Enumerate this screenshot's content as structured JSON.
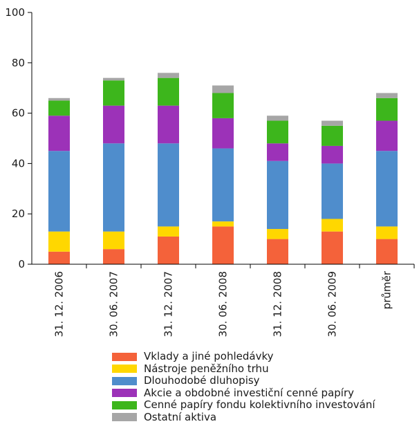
{
  "chart_data": {
    "type": "bar",
    "stacked": true,
    "categories": [
      "31. 12. 2006",
      "30. 06. 2007",
      "31. 12. 2007",
      "30. 06. 2008",
      "31. 12. 2008",
      "30. 06. 2009",
      "průměr"
    ],
    "series": [
      {
        "name": "Vklady a jiné pohledávky",
        "color": "#f4623a",
        "values": [
          5,
          6,
          11,
          15,
          10,
          13,
          10
        ]
      },
      {
        "name": "Nástroje peněžního trhu",
        "color": "#ffd700",
        "values": [
          8,
          7,
          4,
          2,
          4,
          5,
          5
        ]
      },
      {
        "name": "Dlouhodobé dluhopisy",
        "color": "#4f8dcc",
        "values": [
          32,
          35,
          33,
          29,
          27,
          22,
          30
        ]
      },
      {
        "name": "Akcie a obdobné investiční cenné papíry",
        "color": "#9c32b8",
        "values": [
          14,
          15,
          15,
          12,
          7,
          7,
          12
        ]
      },
      {
        "name": "Cenné papíry fondu kolektivního investování",
        "color": "#3db61c",
        "values": [
          6,
          10,
          11,
          10,
          9,
          8,
          9
        ]
      },
      {
        "name": "Ostatní aktiva",
        "color": "#a6a6a6",
        "values": [
          1,
          1,
          2,
          3,
          2,
          2,
          2
        ]
      }
    ],
    "ylim": [
      0,
      100
    ],
    "yticks": [
      0,
      20,
      40,
      60,
      80,
      100
    ],
    "title": "",
    "xlabel": "",
    "ylabel": "",
    "grid": false,
    "legend_position": "bottom"
  }
}
